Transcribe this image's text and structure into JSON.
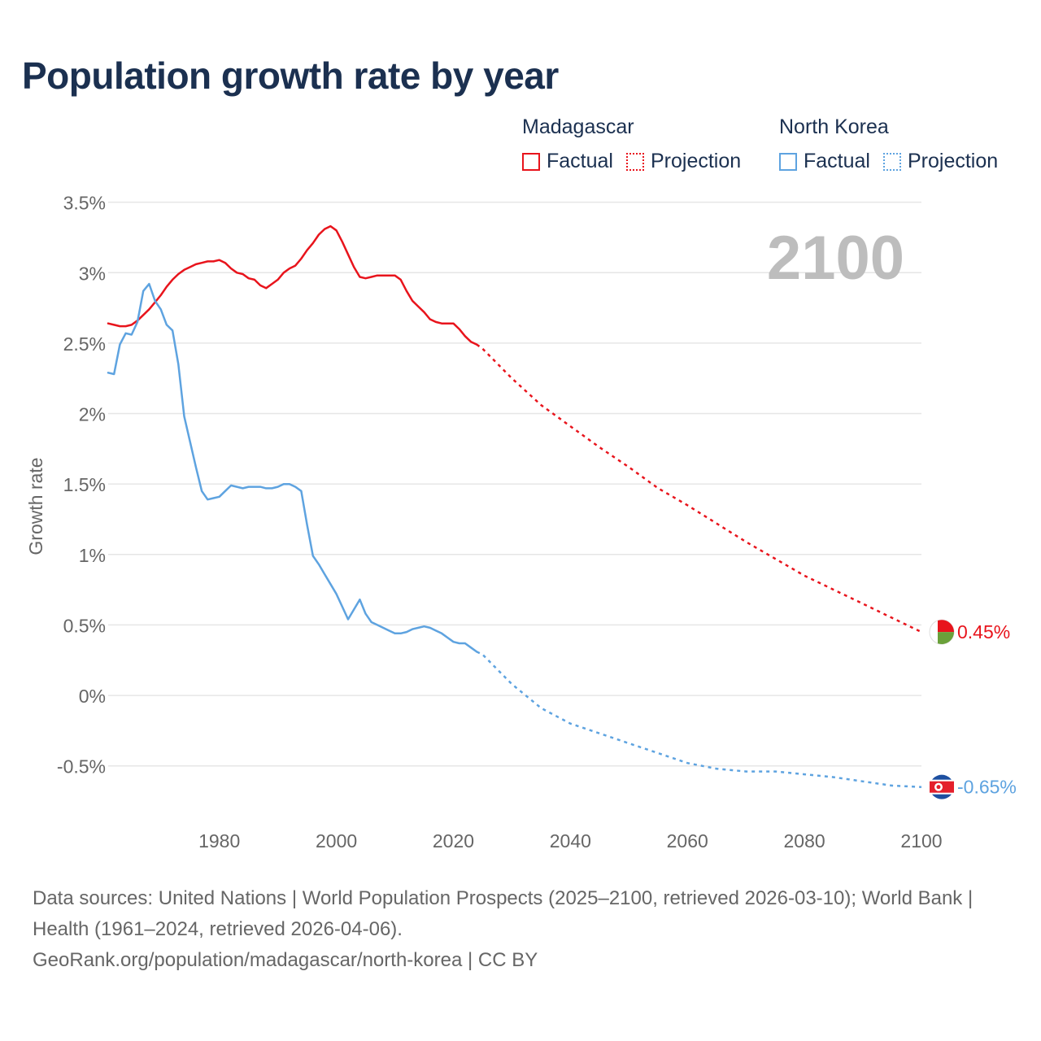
{
  "title": "Population growth rate by year",
  "legend": {
    "groups": [
      {
        "country": "Madagascar",
        "factual_label": "Factual",
        "projection_label": "Projection"
      },
      {
        "country": "North Korea",
        "factual_label": "Factual",
        "projection_label": "Projection"
      }
    ]
  },
  "year_watermark": "2100",
  "footer": {
    "sources": "Data sources: United Nations | World Population Prospects (2025–2100, retrieved 2026-03-10); World Bank | Health (1961–2024, retrieved 2026-04-06).",
    "credit": "GeoRank.org/population/madagascar/north-korea | CC BY"
  },
  "colors": {
    "madagascar": "#e8141c",
    "north_korea": "#5ea3e0",
    "grid": "#e6e6e6",
    "axis_text": "#666666"
  },
  "chart_data": {
    "type": "line",
    "title": "Population growth rate by year",
    "xlabel": "",
    "ylabel": "Growth rate",
    "xlim": [
      1961,
      2100
    ],
    "ylim": [
      -0.9,
      3.7
    ],
    "y_ticks": [
      3.5,
      3,
      2.5,
      2,
      1.5,
      1,
      0.5,
      0,
      -0.5
    ],
    "y_tick_labels": [
      "3.5%",
      "3%",
      "2.5%",
      "2%",
      "1.5%",
      "1%",
      "0.5%",
      "0%",
      "-0.5%"
    ],
    "x_ticks": [
      1980,
      2000,
      2020,
      2040,
      2060,
      2080,
      2100
    ],
    "x_tick_labels": [
      "1980",
      "2000",
      "2020",
      "2040",
      "2060",
      "2080",
      "2100"
    ],
    "grid": true,
    "series": [
      {
        "name": "Madagascar",
        "color": "#e8141c",
        "end_label": "0.45%",
        "factual": {
          "x": [
            1961,
            1962,
            1963,
            1964,
            1965,
            1966,
            1967,
            1968,
            1969,
            1970,
            1971,
            1972,
            1973,
            1974,
            1975,
            1976,
            1977,
            1978,
            1979,
            1980,
            1981,
            1982,
            1983,
            1984,
            1985,
            1986,
            1987,
            1988,
            1989,
            1990,
            1991,
            1992,
            1993,
            1994,
            1995,
            1996,
            1997,
            1998,
            1999,
            2000,
            2001,
            2002,
            2003,
            2004,
            2005,
            2006,
            2007,
            2008,
            2009,
            2010,
            2011,
            2012,
            2013,
            2014,
            2015,
            2016,
            2017,
            2018,
            2019,
            2020,
            2021,
            2022,
            2023,
            2024
          ],
          "y": [
            2.64,
            2.63,
            2.62,
            2.62,
            2.63,
            2.66,
            2.7,
            2.74,
            2.79,
            2.84,
            2.9,
            2.95,
            2.99,
            3.02,
            3.04,
            3.06,
            3.07,
            3.08,
            3.08,
            3.09,
            3.07,
            3.03,
            3.0,
            2.99,
            2.96,
            2.95,
            2.91,
            2.89,
            2.92,
            2.95,
            3.0,
            3.03,
            3.05,
            3.1,
            3.16,
            3.21,
            3.27,
            3.31,
            3.33,
            3.3,
            3.22,
            3.13,
            3.04,
            2.97,
            2.96,
            2.97,
            2.98,
            2.98,
            2.98,
            2.98,
            2.95,
            2.87,
            2.8,
            2.76,
            2.72,
            2.67,
            2.65,
            2.64,
            2.64,
            2.64,
            2.6,
            2.55,
            2.51,
            2.49
          ]
        },
        "projection": {
          "x": [
            2024,
            2025,
            2030,
            2035,
            2040,
            2045,
            2050,
            2055,
            2060,
            2065,
            2070,
            2075,
            2080,
            2085,
            2090,
            2095,
            2100
          ],
          "y": [
            2.49,
            2.46,
            2.25,
            2.06,
            1.91,
            1.76,
            1.62,
            1.47,
            1.35,
            1.22,
            1.09,
            0.97,
            0.85,
            0.75,
            0.65,
            0.55,
            0.45
          ]
        }
      },
      {
        "name": "North Korea",
        "color": "#5ea3e0",
        "end_label": "-0.65%",
        "factual": {
          "x": [
            1961,
            1962,
            1963,
            1964,
            1965,
            1966,
            1967,
            1968,
            1969,
            1970,
            1971,
            1972,
            1973,
            1974,
            1975,
            1976,
            1977,
            1978,
            1979,
            1980,
            1981,
            1982,
            1983,
            1984,
            1985,
            1986,
            1987,
            1988,
            1989,
            1990,
            1991,
            1992,
            1993,
            1994,
            1995,
            1996,
            1997,
            1998,
            1999,
            2000,
            2001,
            2002,
            2003,
            2004,
            2005,
            2006,
            2007,
            2008,
            2009,
            2010,
            2011,
            2012,
            2013,
            2014,
            2015,
            2016,
            2017,
            2018,
            2019,
            2020,
            2021,
            2022,
            2023,
            2024
          ],
          "y": [
            2.29,
            2.28,
            2.49,
            2.57,
            2.56,
            2.65,
            2.87,
            2.92,
            2.8,
            2.74,
            2.63,
            2.59,
            2.35,
            1.98,
            1.8,
            1.62,
            1.45,
            1.39,
            1.4,
            1.41,
            1.45,
            1.49,
            1.48,
            1.47,
            1.48,
            1.48,
            1.48,
            1.47,
            1.47,
            1.48,
            1.5,
            1.5,
            1.48,
            1.45,
            1.21,
            0.99,
            0.93,
            0.86,
            0.79,
            0.72,
            0.63,
            0.54,
            0.61,
            0.68,
            0.58,
            0.52,
            0.5,
            0.48,
            0.46,
            0.44,
            0.44,
            0.45,
            0.47,
            0.48,
            0.49,
            0.48,
            0.46,
            0.44,
            0.41,
            0.38,
            0.37,
            0.37,
            0.34,
            0.31
          ]
        },
        "projection": {
          "x": [
            2024,
            2025,
            2030,
            2035,
            2040,
            2045,
            2050,
            2055,
            2060,
            2065,
            2070,
            2075,
            2080,
            2085,
            2090,
            2095,
            2100
          ],
          "y": [
            0.31,
            0.29,
            0.08,
            -0.09,
            -0.2,
            -0.27,
            -0.34,
            -0.41,
            -0.48,
            -0.52,
            -0.54,
            -0.54,
            -0.56,
            -0.58,
            -0.61,
            -0.64,
            -0.65
          ]
        }
      }
    ]
  }
}
